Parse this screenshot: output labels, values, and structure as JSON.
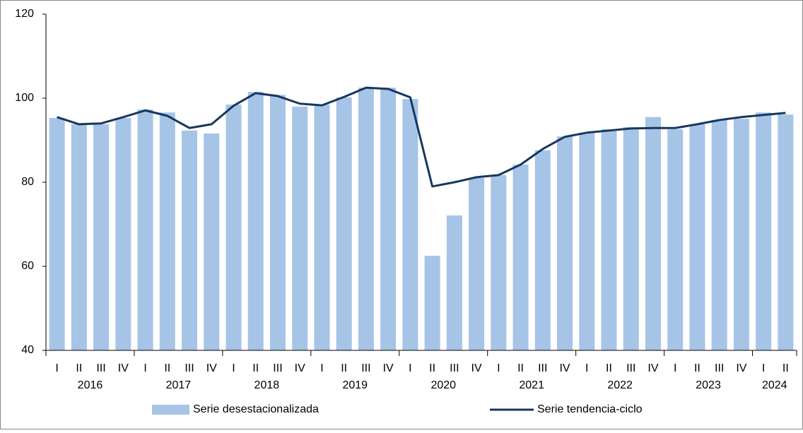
{
  "chart_data": {
    "type": "bar-line",
    "categories": [
      "I",
      "II",
      "III",
      "IV",
      "I",
      "II",
      "III",
      "IV",
      "I",
      "II",
      "III",
      "IV",
      "I",
      "II",
      "III",
      "IV",
      "I",
      "II",
      "III",
      "IV",
      "I",
      "II",
      "III",
      "IV",
      "I",
      "II",
      "III",
      "IV",
      "I",
      "II",
      "III",
      "IV",
      "I",
      "II"
    ],
    "years": [
      "2016",
      "2017",
      "2018",
      "2019",
      "2020",
      "2021",
      "2022",
      "2023",
      "2024"
    ],
    "series": [
      {
        "name": "Serie desestacionalizada",
        "type": "bar",
        "color": "#a6c4e6",
        "values": [
          95.3,
          93.8,
          93.8,
          95.3,
          97.3,
          96.6,
          92.3,
          91.6,
          98.5,
          101.5,
          100.8,
          98.0,
          98.5,
          100.2,
          102.5,
          102.5,
          99.8,
          62.5,
          72.1,
          81.0,
          81.7,
          84.2,
          87.6,
          90.9,
          91.8,
          92.6,
          93.1,
          95.5,
          92.6,
          93.8,
          94.8,
          95.1,
          96.6,
          96.1
        ]
      },
      {
        "name": "Serie tendencia-ciclo",
        "type": "line",
        "color": "#17375e",
        "values": [
          95.5,
          93.8,
          94.0,
          95.5,
          97.1,
          95.8,
          92.9,
          93.8,
          98.2,
          101.2,
          100.5,
          98.7,
          98.3,
          100.3,
          102.5,
          102.2,
          100.2,
          79.0,
          80.0,
          81.2,
          81.7,
          84.2,
          87.9,
          90.8,
          91.8,
          92.3,
          92.8,
          92.9,
          92.9,
          93.8,
          94.8,
          95.5,
          96.0,
          96.5
        ]
      }
    ],
    "ylim": [
      40,
      120
    ],
    "yticks": [
      40,
      60,
      80,
      100,
      120
    ]
  }
}
